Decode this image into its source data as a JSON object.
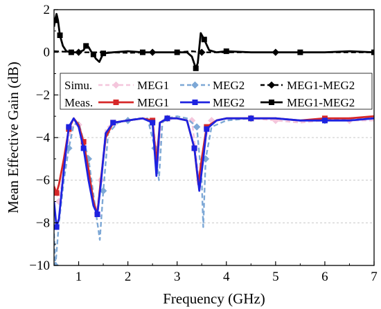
{
  "chart_data": {
    "type": "line",
    "xlabel": "Frequency (GHz)",
    "ylabel": "Mean Effective Gain (dB)",
    "xlim": [
      0.5,
      7
    ],
    "ylim": [
      -10,
      2
    ],
    "xticks": [
      1,
      2,
      3,
      4,
      5,
      6,
      7
    ],
    "yticks": [
      -10,
      -8,
      -6,
      -4,
      -2,
      0,
      2
    ],
    "grid": "dashed horizontal at -8, -6, -4, -2, 0",
    "legend": {
      "placement": "top",
      "row_labels": [
        "Simu.",
        "Meas."
      ],
      "column_labels": [
        "MEG1",
        "MEG2",
        "MEG1-MEG2"
      ]
    },
    "series": [
      {
        "name": "MEG1",
        "group": "Simu.",
        "color": "#f4c6dc",
        "dash": "dashed",
        "marker": "diamond",
        "x": [
          0.5,
          0.6,
          0.7,
          0.85,
          1.0,
          1.2,
          1.35,
          1.45,
          1.55,
          1.7,
          2.0,
          2.3,
          2.5,
          2.6,
          2.7,
          3.0,
          3.3,
          3.45,
          3.55,
          3.7,
          4.0,
          4.5,
          5.0,
          5.5,
          6.0,
          6.5,
          7.0
        ],
        "y": [
          -6.2,
          -7.0,
          -5.5,
          -3.5,
          -3.4,
          -5.5,
          -7.8,
          -6.0,
          -3.6,
          -3.3,
          -3.2,
          -3.1,
          -3.2,
          -5.0,
          -3.2,
          -3.1,
          -3.2,
          -6.0,
          -4.2,
          -3.2,
          -3.1,
          -3.1,
          -3.2,
          -3.3,
          -3.2,
          -3.2,
          -3.2
        ]
      },
      {
        "name": "MEG2",
        "group": "Simu.",
        "color": "#7da8d6",
        "dash": "dashed",
        "marker": "diamond",
        "x": [
          0.5,
          0.53,
          0.6,
          0.7,
          0.8,
          0.9,
          1.0,
          1.2,
          1.35,
          1.43,
          1.5,
          1.6,
          1.8,
          2.0,
          2.2,
          2.4,
          2.55,
          2.63,
          2.7,
          2.8,
          3.0,
          3.2,
          3.4,
          3.5,
          3.53,
          3.58,
          3.7,
          4.0,
          4.5,
          5.0,
          5.5,
          6.0,
          6.5,
          7.0
        ],
        "y": [
          -8.5,
          -10.0,
          -8.0,
          -6.0,
          -4.5,
          -3.4,
          -3.3,
          -5.0,
          -7.5,
          -8.8,
          -6.5,
          -3.8,
          -3.3,
          -3.2,
          -3.1,
          -3.1,
          -4.5,
          -6.0,
          -3.3,
          -3.1,
          -3.0,
          -3.1,
          -3.5,
          -6.0,
          -8.2,
          -5.0,
          -3.5,
          -3.2,
          -3.1,
          -3.1,
          -3.2,
          -3.2,
          -3.1,
          -3.1
        ]
      },
      {
        "name": "MEG1-MEG2",
        "group": "Simu.",
        "color": "#000000",
        "dash": "dashed",
        "marker": "diamond",
        "x": [
          0.5,
          1.0,
          1.5,
          2.0,
          2.5,
          3.0,
          3.3,
          3.5,
          3.7,
          4.0,
          5.0,
          6.0,
          7.0
        ],
        "y": [
          0.05,
          0.0,
          0.0,
          -0.02,
          0.0,
          0.0,
          0.05,
          0.0,
          0.0,
          0.0,
          0.0,
          0.0,
          0.0
        ]
      },
      {
        "name": "MEG1",
        "group": "Meas.",
        "color": "#d62728",
        "dash": "solid",
        "marker": "square",
        "x": [
          0.5,
          0.55,
          0.6,
          0.7,
          0.8,
          0.9,
          1.0,
          1.1,
          1.2,
          1.3,
          1.38,
          1.45,
          1.55,
          1.7,
          2.0,
          2.3,
          2.5,
          2.58,
          2.65,
          2.8,
          3.0,
          3.2,
          3.35,
          3.43,
          3.5,
          3.6,
          3.8,
          4.0,
          4.5,
          5.0,
          5.5,
          6.0,
          6.5,
          7.0
        ],
        "y": [
          -6.3,
          -6.6,
          -6.2,
          -5.0,
          -3.6,
          -3.1,
          -3.4,
          -4.2,
          -5.5,
          -7.0,
          -7.6,
          -6.0,
          -4.0,
          -3.3,
          -3.2,
          -3.1,
          -3.2,
          -5.2,
          -3.3,
          -3.1,
          -3.1,
          -3.2,
          -4.5,
          -6.2,
          -5.0,
          -3.5,
          -3.2,
          -3.1,
          -3.1,
          -3.1,
          -3.2,
          -3.1,
          -3.1,
          -3.0
        ]
      },
      {
        "name": "MEG2",
        "group": "Meas.",
        "color": "#1d22e0",
        "dash": "solid",
        "marker": "square",
        "x": [
          0.5,
          0.55,
          0.6,
          0.7,
          0.8,
          0.9,
          1.0,
          1.1,
          1.2,
          1.3,
          1.38,
          1.45,
          1.55,
          1.7,
          2.0,
          2.3,
          2.5,
          2.58,
          2.65,
          2.8,
          3.0,
          3.2,
          3.35,
          3.45,
          3.52,
          3.6,
          3.8,
          4.0,
          4.5,
          5.0,
          5.5,
          6.0,
          6.5,
          7.0
        ],
        "y": [
          -7.0,
          -8.2,
          -7.8,
          -5.5,
          -3.5,
          -3.1,
          -3.5,
          -4.5,
          -6.0,
          -7.2,
          -7.6,
          -6.2,
          -3.8,
          -3.3,
          -3.2,
          -3.1,
          -3.3,
          -5.8,
          -3.3,
          -3.1,
          -3.1,
          -3.2,
          -4.5,
          -6.5,
          -5.2,
          -3.6,
          -3.2,
          -3.1,
          -3.1,
          -3.1,
          -3.2,
          -3.2,
          -3.2,
          -3.1
        ]
      },
      {
        "name": "MEG1-MEG2",
        "group": "Meas.",
        "color": "#000000",
        "dash": "solid",
        "marker": "square",
        "x": [
          0.5,
          0.52,
          0.55,
          0.58,
          0.62,
          0.68,
          0.75,
          0.85,
          1.0,
          1.1,
          1.15,
          1.2,
          1.25,
          1.3,
          1.35,
          1.42,
          1.5,
          1.7,
          2.0,
          2.3,
          2.5,
          2.8,
          3.0,
          3.2,
          3.3,
          3.38,
          3.42,
          3.48,
          3.55,
          3.65,
          3.8,
          4.0,
          4.5,
          5.0,
          5.5,
          6.0,
          6.5,
          7.0
        ],
        "y": [
          1.2,
          1.5,
          1.8,
          1.5,
          0.8,
          0.3,
          0.05,
          0.0,
          0.0,
          0.1,
          0.3,
          0.25,
          0.05,
          -0.1,
          -0.3,
          -0.45,
          -0.05,
          0.0,
          0.05,
          0.0,
          0.0,
          0.0,
          0.0,
          0.0,
          -0.2,
          -0.75,
          -0.5,
          0.9,
          0.6,
          0.1,
          0.0,
          0.05,
          0.0,
          0.0,
          0.0,
          0.0,
          0.05,
          0.0
        ]
      }
    ]
  }
}
